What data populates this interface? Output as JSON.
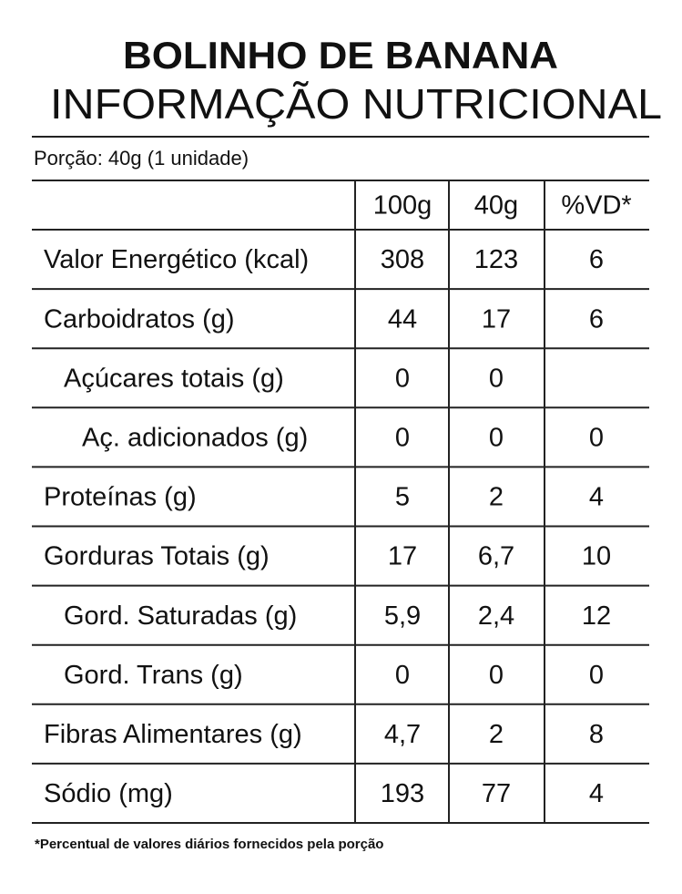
{
  "header": {
    "title": "BOLINHO DE BANANA",
    "subtitle": "INFORMAÇÃO NUTRICIONAL"
  },
  "portion": "Porção: 40g (1 unidade)",
  "table": {
    "columns": [
      "100g",
      "40g",
      "%VD*"
    ],
    "rows": [
      [
        "Valor Energético (kcal)",
        "308",
        "123",
        "6"
      ],
      [
        "Carboidratos (g)",
        "44",
        "17",
        "6"
      ],
      [
        "Açúcares totais (g)",
        "0",
        "0",
        null
      ],
      [
        "Aç. adicionados (g)",
        "0",
        "0",
        "0"
      ],
      [
        "Proteínas (g)",
        "5",
        "2",
        "4"
      ],
      [
        "Gorduras Totais (g)",
        "17",
        "6,7",
        "10"
      ],
      [
        "Gord. Saturadas (g)",
        "5,9",
        "2,4",
        "12"
      ],
      [
        "Gord. Trans (g)",
        "0",
        "0",
        "0"
      ],
      [
        "Fibras Alimentares (g)",
        "4,7",
        "2",
        "8"
      ],
      [
        "Sódio (mg)",
        "193",
        "77",
        "4"
      ]
    ]
  },
  "footnote": "*Percentual de valores diários fornecidos pela porção"
}
